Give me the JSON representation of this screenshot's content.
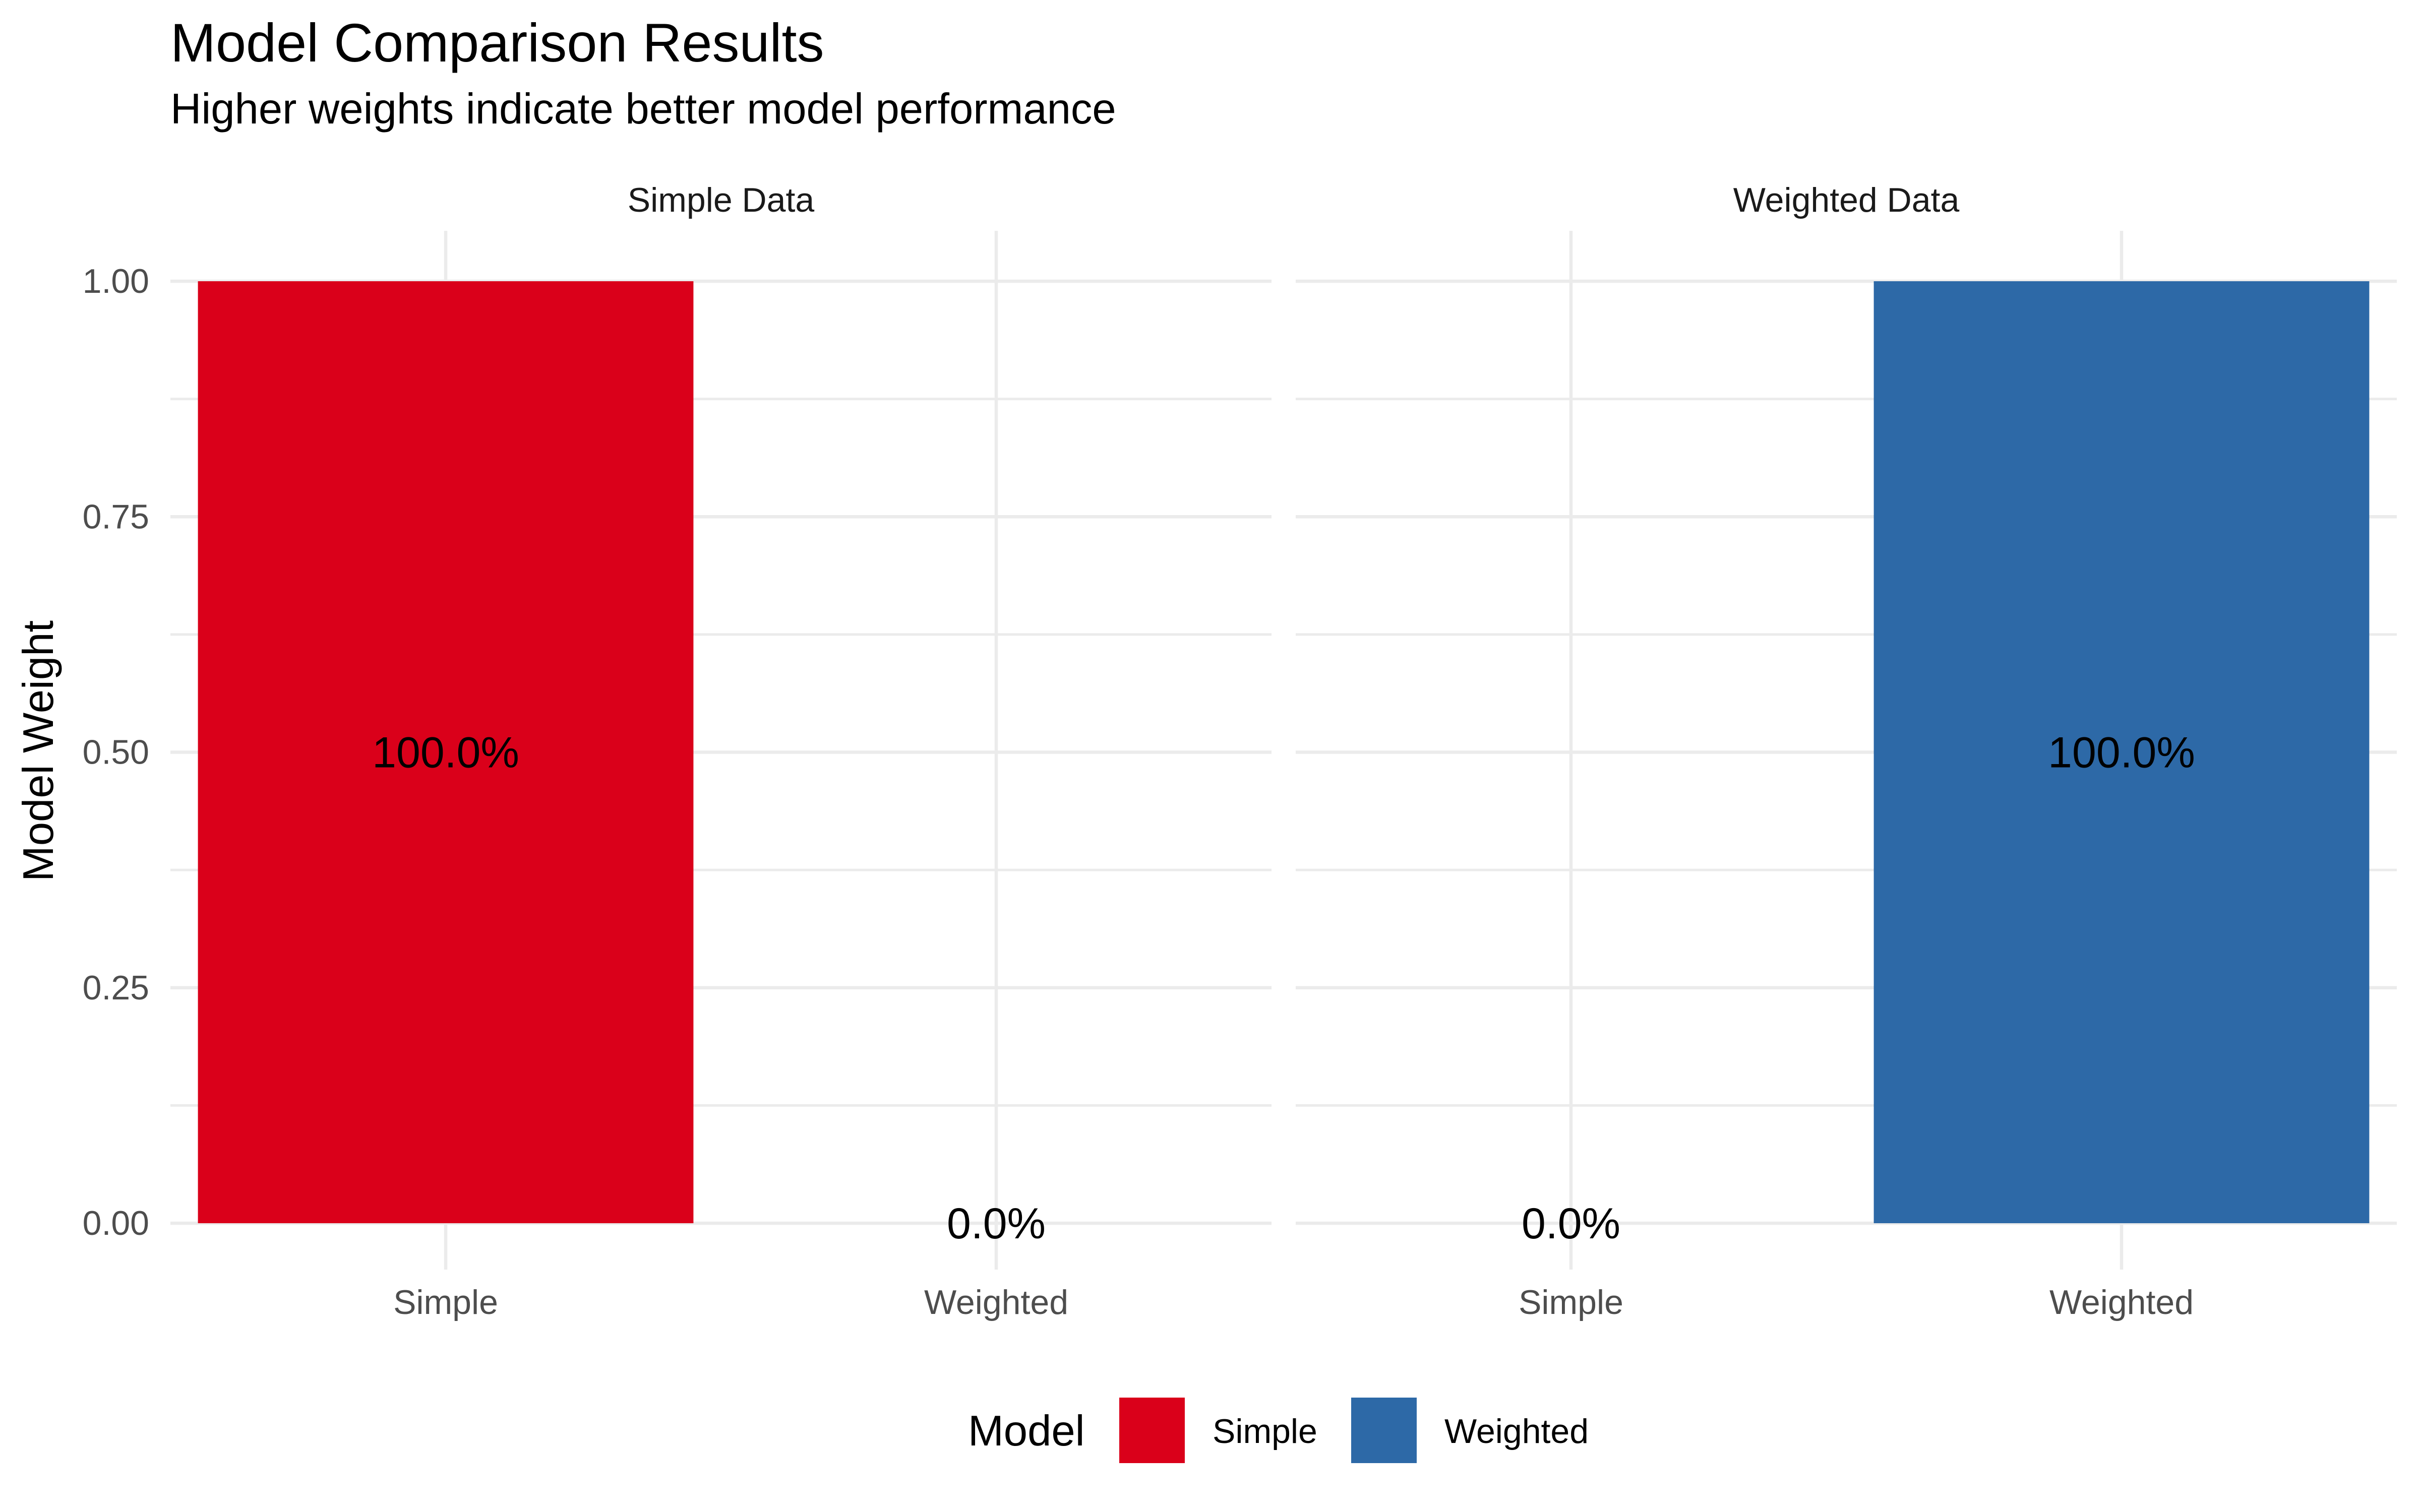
{
  "chart_data": {
    "type": "bar",
    "title": "Model Comparison Results",
    "subtitle": "Higher weights indicate better model performance",
    "ylabel": "Model Weight",
    "xlabel": "",
    "ylim": [
      0,
      1
    ],
    "yticks": [
      0,
      0.25,
      0.5,
      0.75,
      1
    ],
    "ytick_labels": [
      "0.00",
      "0.25",
      "0.50",
      "0.75",
      "1.00"
    ],
    "grid": true,
    "categories": [
      "Simple",
      "Weighted"
    ],
    "facets": [
      {
        "name": "Simple Data",
        "values": [
          1,
          0
        ],
        "labels": [
          "100.0%",
          "0.0%"
        ]
      },
      {
        "name": "Weighted Data",
        "values": [
          0,
          1
        ],
        "labels": [
          "0.0%",
          "100.0%"
        ]
      }
    ],
    "legend": {
      "title": "Model",
      "position": "bottom",
      "entries": [
        {
          "name": "Simple",
          "color": "#DA001A"
        },
        {
          "name": "Weighted",
          "color": "#2D69A7"
        }
      ]
    },
    "colors": {
      "Simple": "#DA001A",
      "Weighted": "#2D69A7"
    }
  }
}
